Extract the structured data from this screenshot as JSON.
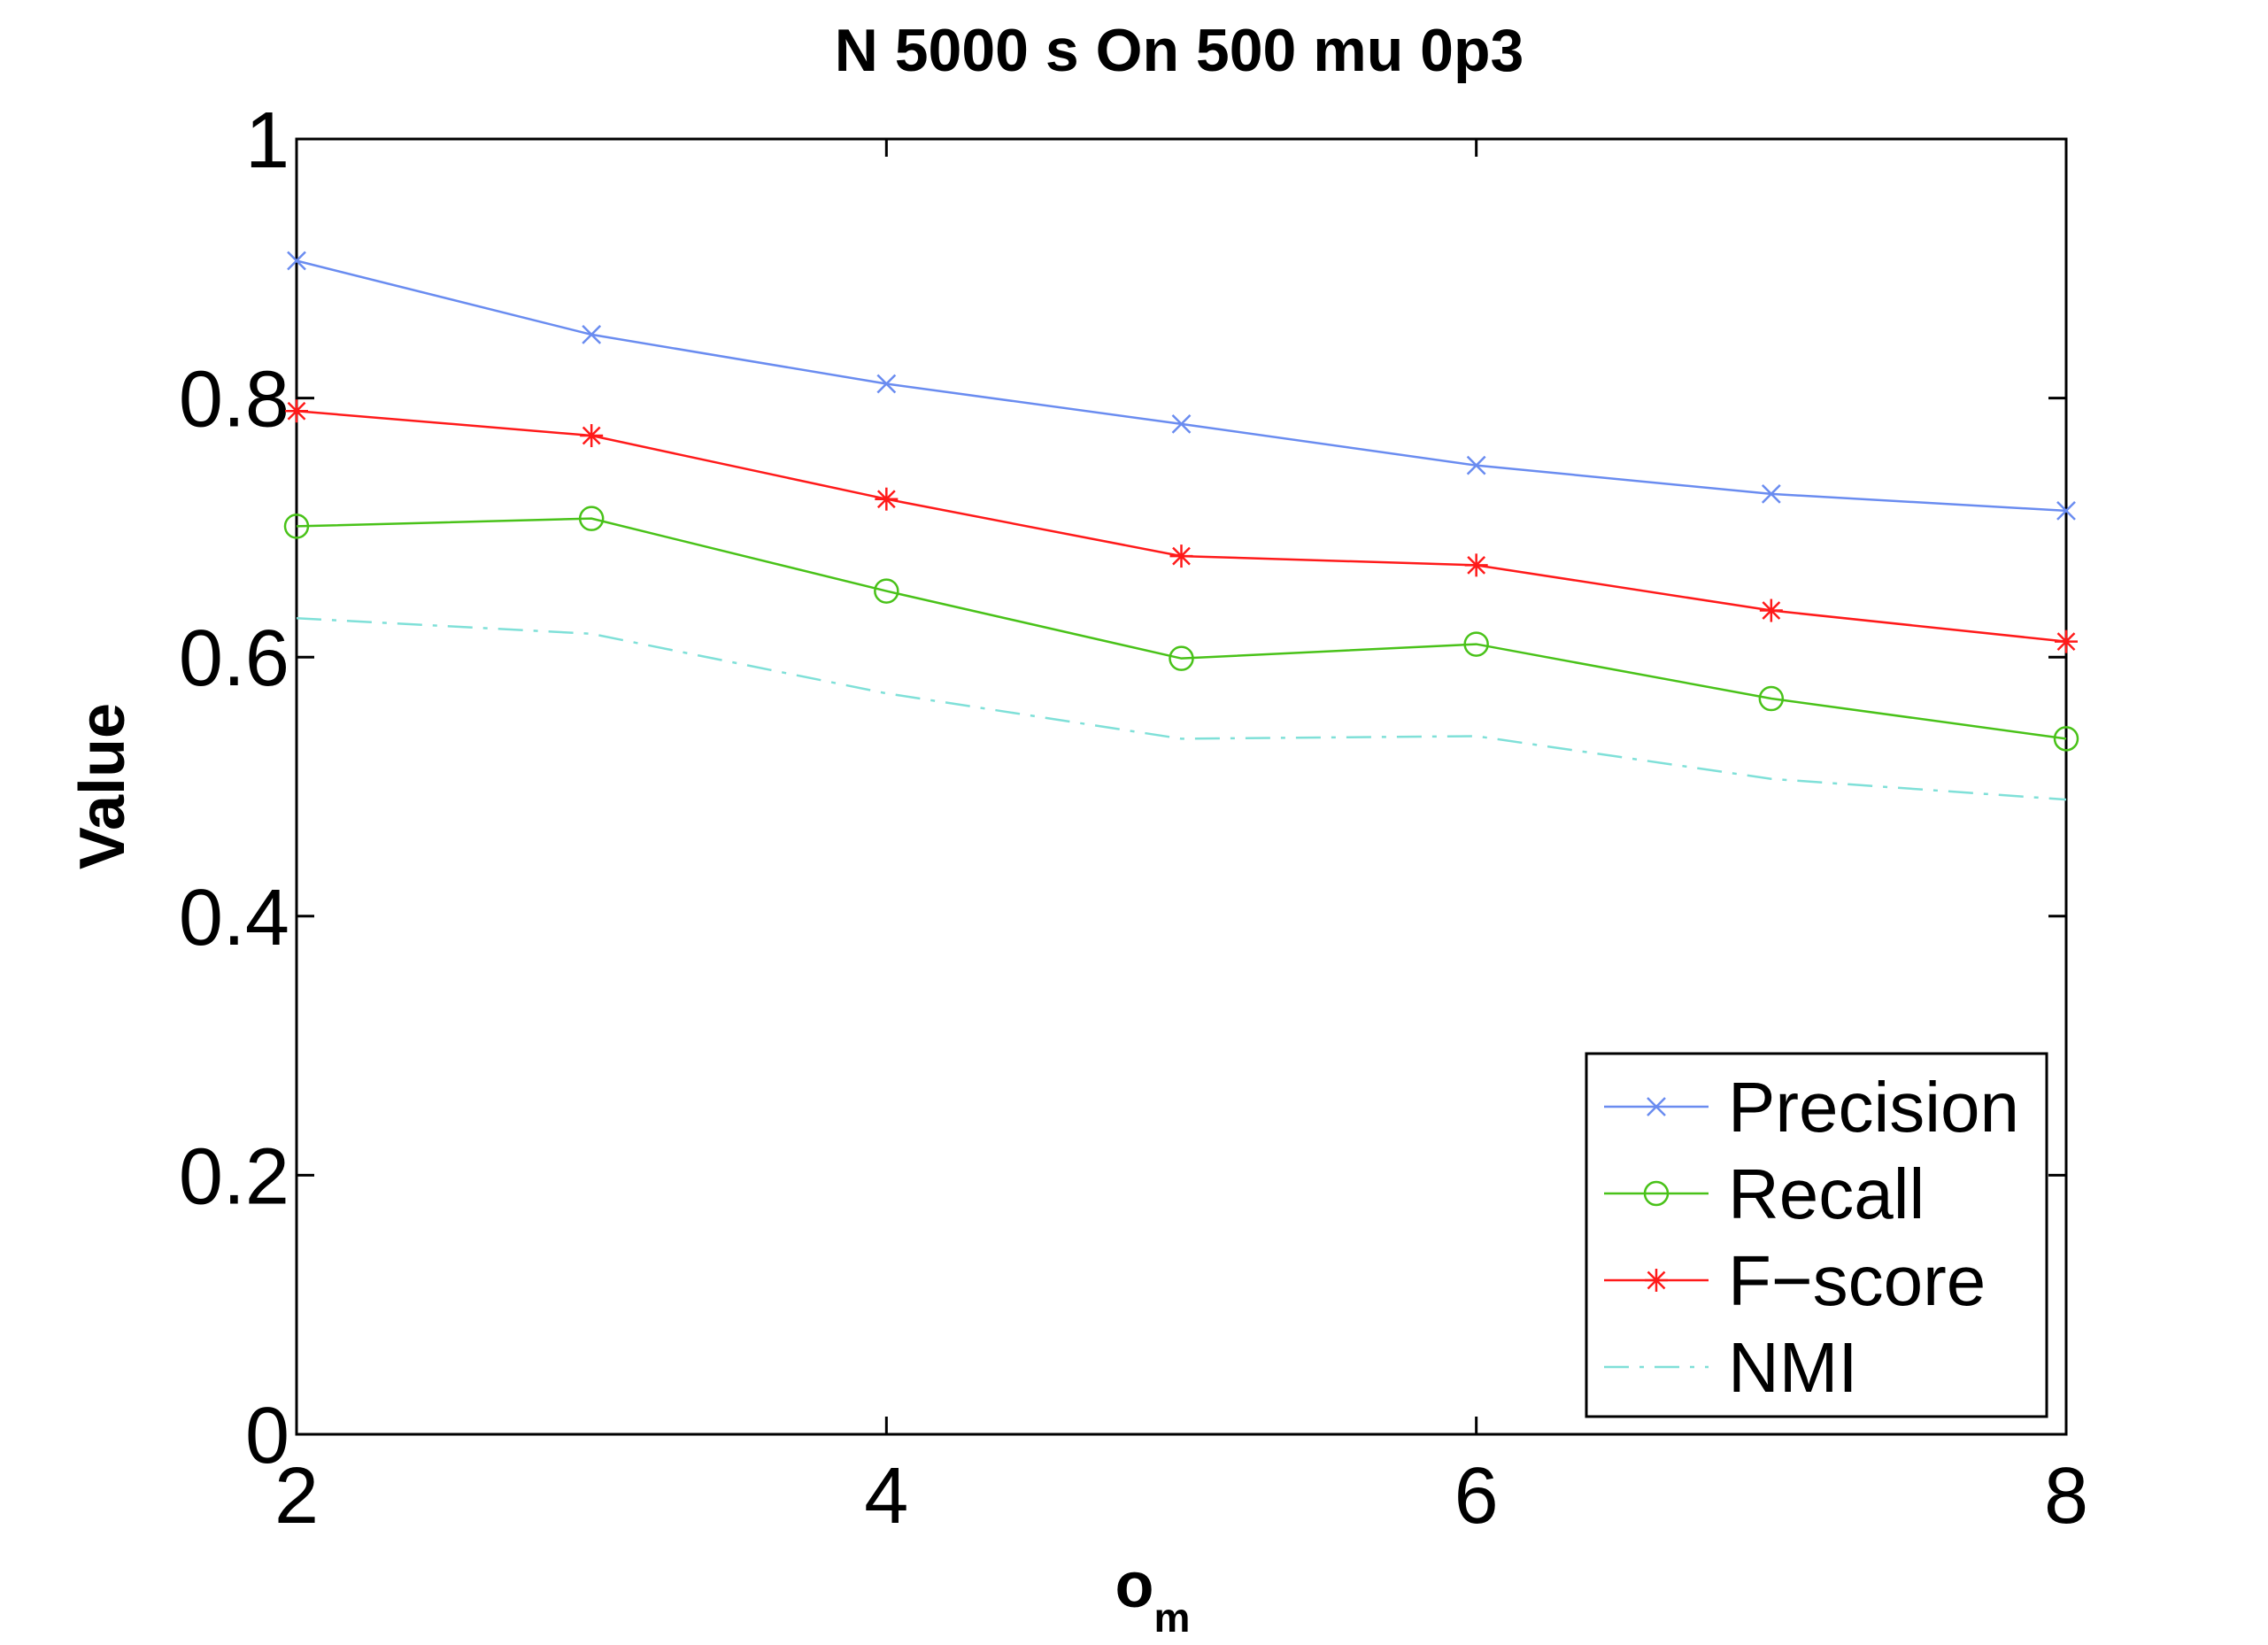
{
  "chart_data": {
    "type": "line",
    "title": "N 5000 s On 500 mu 0p3",
    "xlabel": "o",
    "xlabel_subscript": "m",
    "ylabel": "Value",
    "xlim": [
      2,
      8
    ],
    "ylim": [
      0,
      1
    ],
    "xticks": [
      2,
      4,
      6,
      8
    ],
    "yticks": [
      0,
      0.2,
      0.4,
      0.6,
      0.8,
      1
    ],
    "xtick_labels": [
      "2",
      "4",
      "6",
      "8"
    ],
    "ytick_labels": [
      "0",
      "0.2",
      "0.4",
      "0.6",
      "0.8",
      "1"
    ],
    "grid": false,
    "legend_position": "bottom-right",
    "x": [
      2,
      3,
      4,
      5,
      6,
      7,
      8
    ],
    "series": [
      {
        "name": "Precision",
        "color": "#6a8cf0",
        "marker": "x",
        "line": "solid",
        "values": [
          0.906,
          0.849,
          0.811,
          0.78,
          0.748,
          0.726,
          0.713
        ]
      },
      {
        "name": "Recall",
        "color": "#49c219",
        "marker": "o",
        "line": "solid",
        "values": [
          0.701,
          0.707,
          0.651,
          0.599,
          0.61,
          0.568,
          0.537
        ]
      },
      {
        "name": "F−score",
        "color": "#ff1a1a",
        "marker": "*",
        "line": "solid",
        "values": [
          0.79,
          0.771,
          0.722,
          0.678,
          0.671,
          0.636,
          0.612
        ]
      },
      {
        "name": "NMI",
        "color": "#7fe0d8",
        "marker": "none",
        "line": "dashdot",
        "values": [
          0.63,
          0.618,
          0.572,
          0.537,
          0.539,
          0.506,
          0.49
        ]
      }
    ]
  }
}
